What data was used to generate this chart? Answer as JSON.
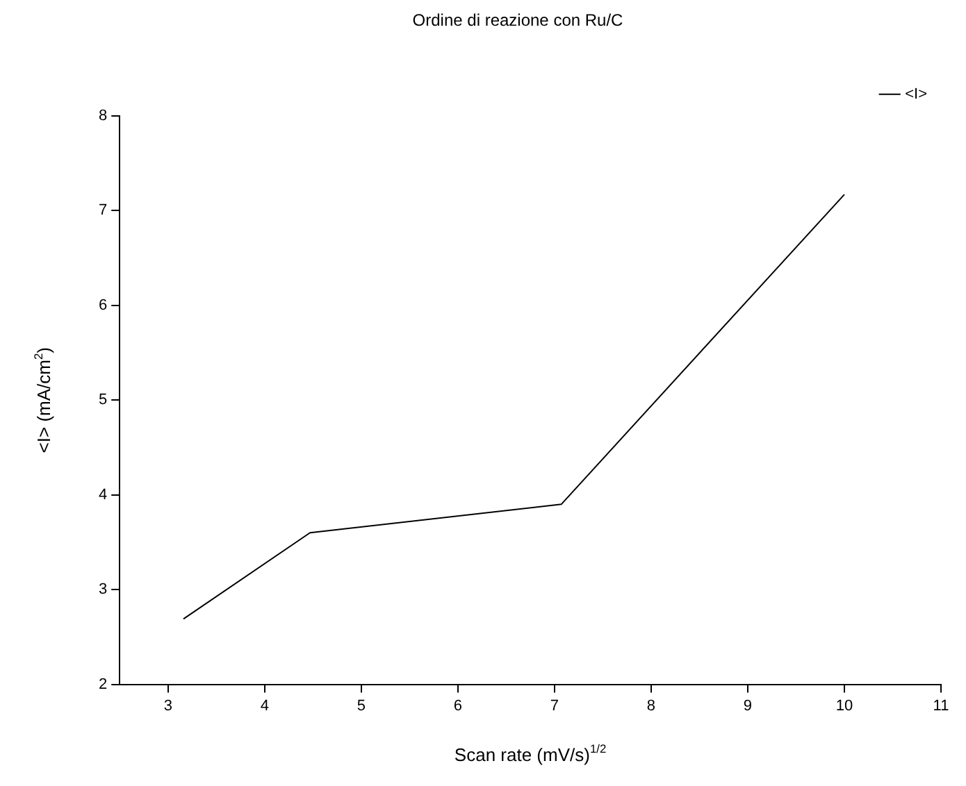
{
  "chart_data": {
    "type": "line",
    "title": "Ordine di reazione con Ru/C",
    "xlabel": "Scan rate (mV/s)$^{1/2}$",
    "ylabel": "<I> (mA/cm$^{2}$)",
    "x": [
      3.16,
      4.47,
      7.07,
      10
    ],
    "series": [
      {
        "name": "<I>",
        "color": "#000000",
        "values": [
          2.69,
          3.6,
          3.9,
          7.17
        ]
      }
    ],
    "xlim": [
      2.5,
      11
    ],
    "xticks": [
      3,
      4,
      5,
      6,
      7,
      8,
      9,
      10,
      11
    ],
    "ylim": [
      2,
      8
    ],
    "yticks": [
      2,
      3,
      4,
      5,
      6,
      7,
      8
    ],
    "grid": false,
    "legend": "top right",
    "marker": "none",
    "line_style": "solid"
  }
}
